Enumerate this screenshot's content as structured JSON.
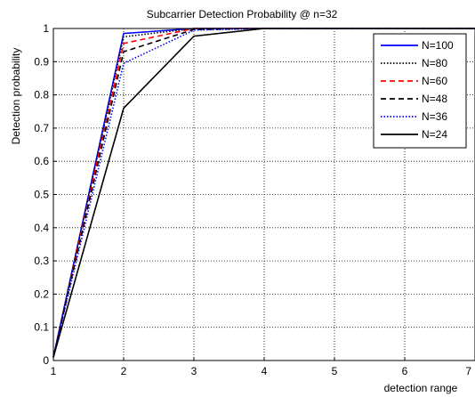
{
  "chart_data": {
    "type": "line",
    "title": "Subcarrier Detection Probability @ n=32",
    "xlabel": "detection range",
    "ylabel": "Detection probability",
    "xlim": [
      1,
      7
    ],
    "ylim": [
      0,
      1
    ],
    "xticks": [
      "1",
      "2",
      "3",
      "4",
      "5",
      "6",
      "7"
    ],
    "yticks": [
      "0",
      "0.1",
      "0.2",
      "0.3",
      "0.4",
      "0.5",
      "0.6",
      "0.7",
      "0.8",
      "0.9",
      "1"
    ],
    "grid": true,
    "legend_position": "top-right",
    "x": [
      1,
      2,
      3,
      4,
      5,
      6,
      7
    ],
    "series": [
      {
        "name": "N=100",
        "values": [
          0.01,
          0.985,
          1.0,
          1.0,
          1.0,
          1.0,
          1.0
        ],
        "color": "#0000ff",
        "dash": "solid"
      },
      {
        "name": "N=80",
        "values": [
          0.01,
          0.975,
          1.0,
          1.0,
          1.0,
          1.0,
          1.0
        ],
        "color": "#000000",
        "dash": "dotted"
      },
      {
        "name": "N=60",
        "values": [
          0.01,
          0.955,
          1.0,
          1.0,
          1.0,
          1.0,
          1.0
        ],
        "color": "#ff0000",
        "dash": "dashed"
      },
      {
        "name": "N=48",
        "values": [
          0.01,
          0.93,
          0.997,
          1.0,
          1.0,
          1.0,
          1.0
        ],
        "color": "#000000",
        "dash": "dashed"
      },
      {
        "name": "N=36",
        "values": [
          0.01,
          0.895,
          0.995,
          1.0,
          1.0,
          1.0,
          1.0
        ],
        "color": "#0000ff",
        "dash": "dotted"
      },
      {
        "name": "N=24",
        "values": [
          0.01,
          0.76,
          0.977,
          1.0,
          1.0,
          1.0,
          1.0
        ],
        "color": "#000000",
        "dash": "solid"
      }
    ]
  }
}
